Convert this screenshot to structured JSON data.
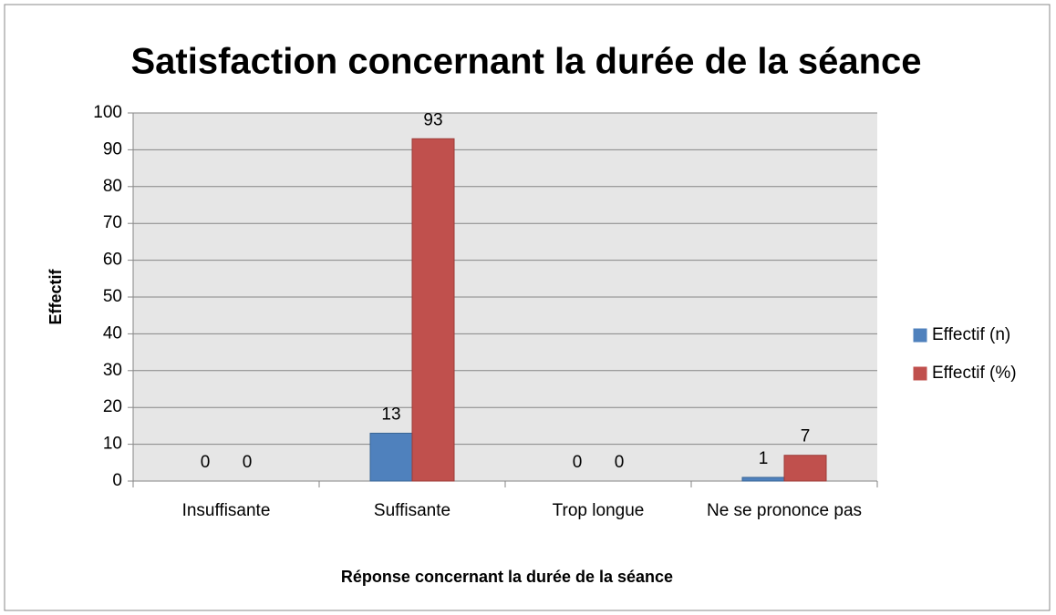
{
  "chart_data": {
    "type": "bar",
    "title": "Satisfaction concernant la durée de la séance",
    "xlabel": "Réponse concernant la durée de la séance",
    "ylabel": "Effectif",
    "categories": [
      "Insuffisante",
      "Suffisante",
      "Trop longue",
      "Ne se prononce pas"
    ],
    "series": [
      {
        "name": "Effectif (n)",
        "color": "#4f81bd",
        "values": [
          0,
          13,
          0,
          1
        ]
      },
      {
        "name": "Effectif (%)",
        "color": "#c0504d",
        "values": [
          0,
          93,
          0,
          7
        ]
      }
    ],
    "ylim": [
      0,
      100
    ],
    "yticks": [
      0,
      10,
      20,
      30,
      40,
      50,
      60,
      70,
      80,
      90,
      100
    ],
    "grid": true,
    "legend": "right"
  }
}
